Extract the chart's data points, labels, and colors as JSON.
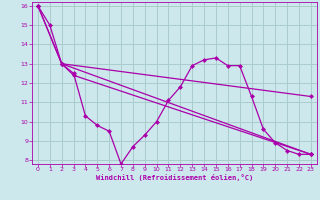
{
  "background_color": "#cce8ec",
  "plot_bg_color": "#cce8ec",
  "line_color": "#aa00aa",
  "grid_color": "#aacccc",
  "xlabel": "Windchill (Refroidissement éolien,°C)",
  "xlabel_color": "#aa00aa",
  "tick_color": "#aa00aa",
  "xlim": [
    -0.5,
    23.5
  ],
  "ylim": [
    7.8,
    16.2
  ],
  "yticks": [
    8,
    9,
    10,
    11,
    12,
    13,
    14,
    15,
    16
  ],
  "xticks": [
    0,
    1,
    2,
    3,
    4,
    5,
    6,
    7,
    8,
    9,
    10,
    11,
    12,
    13,
    14,
    15,
    16,
    17,
    18,
    19,
    20,
    21,
    22,
    23
  ],
  "line1_x": [
    0,
    1,
    2,
    3,
    4,
    5,
    6,
    7,
    8,
    9,
    10,
    11,
    12,
    13,
    14,
    15,
    16,
    17,
    18,
    19,
    20,
    21,
    22,
    23
  ],
  "line1_y": [
    16,
    15,
    13,
    12.5,
    10.3,
    9.8,
    9.5,
    7.8,
    8.7,
    9.3,
    10,
    11.1,
    11.8,
    12.9,
    13.2,
    13.3,
    12.9,
    12.9,
    11.3,
    9.6,
    8.9,
    8.5,
    8.3,
    8.3
  ],
  "line2_x": [
    0,
    2,
    23
  ],
  "line2_y": [
    16,
    13,
    11.3
  ],
  "line3_x": [
    0,
    2,
    23
  ],
  "line3_y": [
    16,
    13,
    8.3
  ],
  "line4_x": [
    2,
    3,
    23
  ],
  "line4_y": [
    13,
    12.4,
    8.3
  ]
}
